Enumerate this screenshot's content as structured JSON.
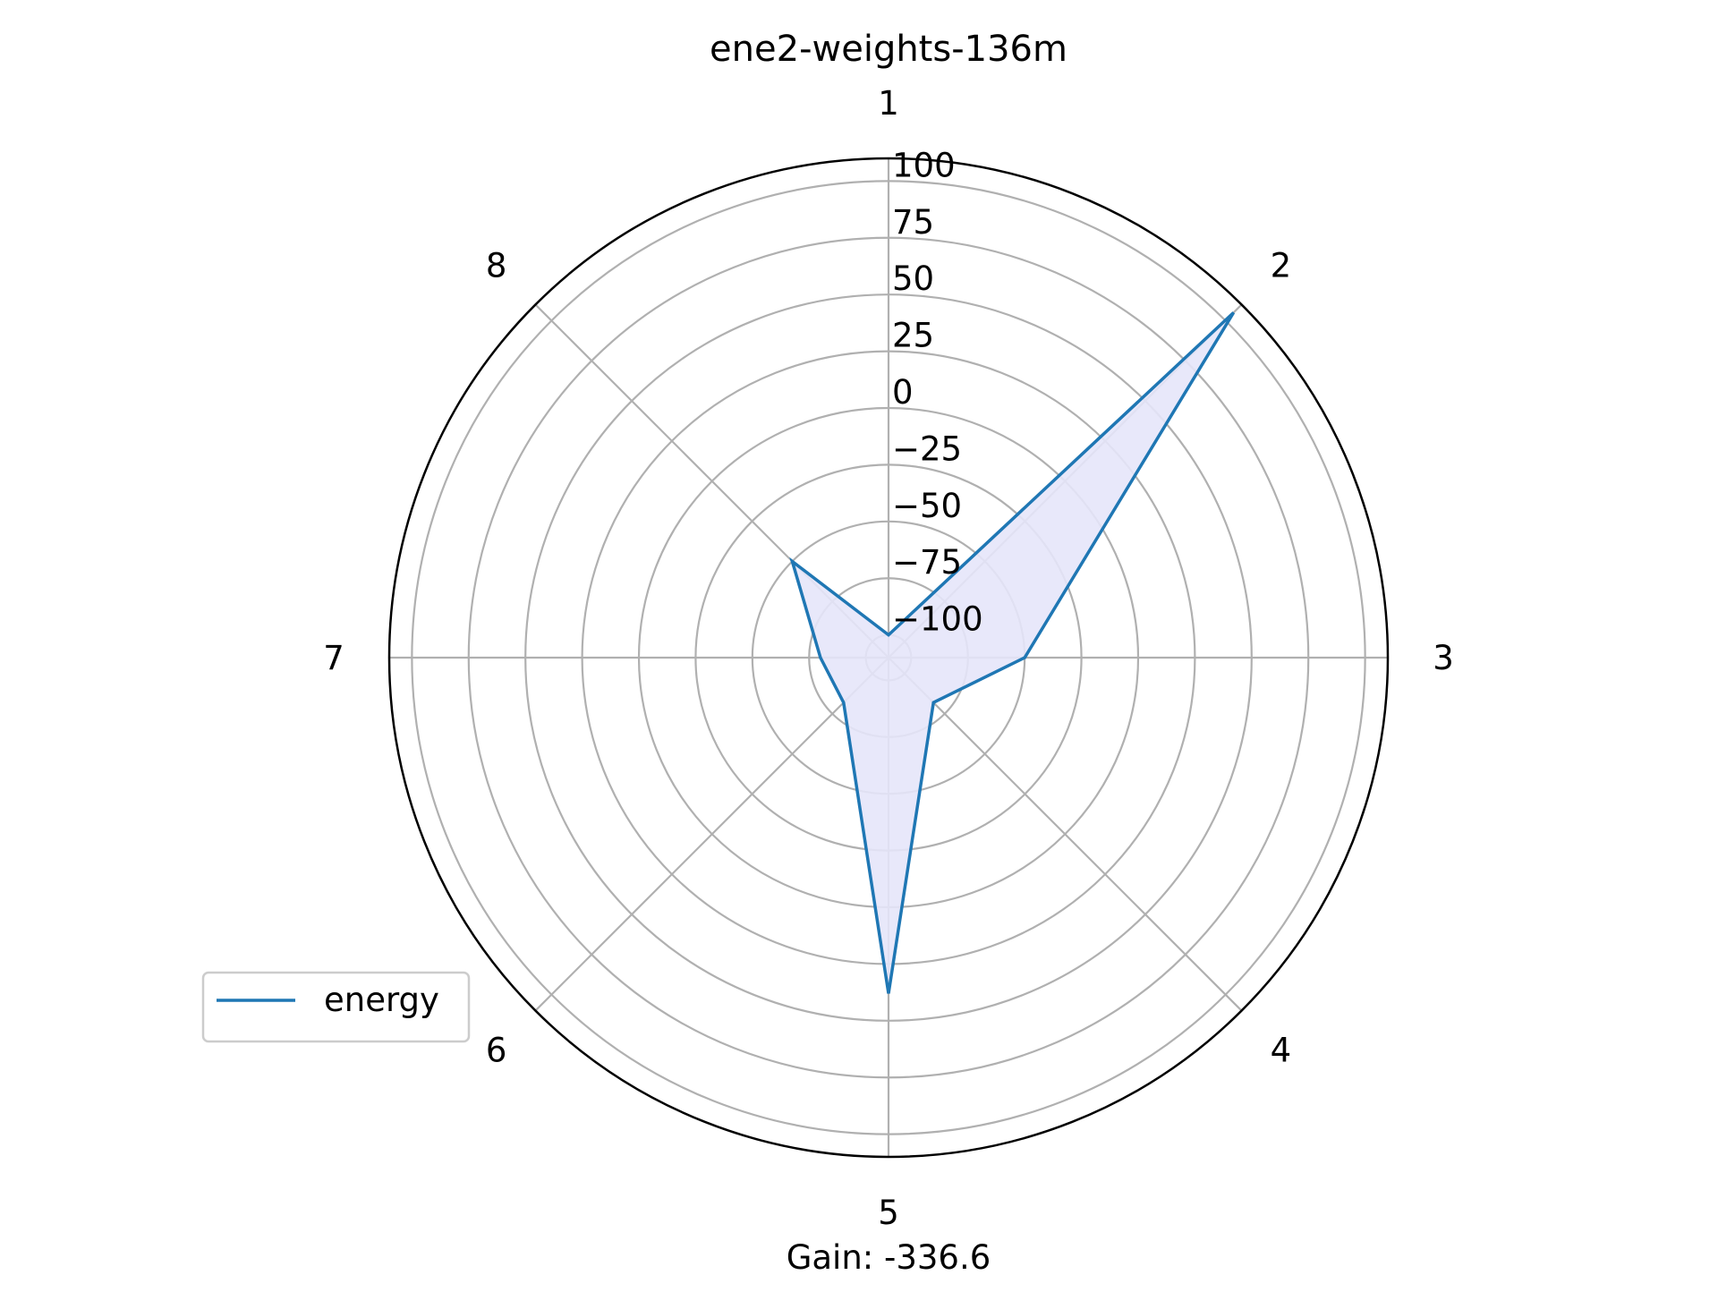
{
  "chart_data": {
    "type": "radar",
    "title": "ene2-weights-136m",
    "categories": [
      "1",
      "2",
      "3",
      "4",
      "5",
      "6",
      "7",
      "8"
    ],
    "series": [
      {
        "name": "energy",
        "values": [
          -100,
          105,
          -50,
          -82,
          38,
          -82,
          -80,
          -50
        ]
      }
    ],
    "radial_ticks": [
      "100",
      "75",
      "50",
      "25",
      "0",
      "−25",
      "−50",
      "−75",
      "−100"
    ],
    "radial_tick_values": [
      100,
      75,
      50,
      25,
      0,
      -25,
      -50,
      -75,
      -100
    ],
    "rlim": [
      -110,
      110
    ],
    "grid": true,
    "legend_position": "lower-left",
    "annotation": "Gain: -336.6",
    "colors": {
      "line": "#1f77b4",
      "fill": "#e6e6fa",
      "grid": "#b0b0b0",
      "spine": "#000000"
    }
  }
}
